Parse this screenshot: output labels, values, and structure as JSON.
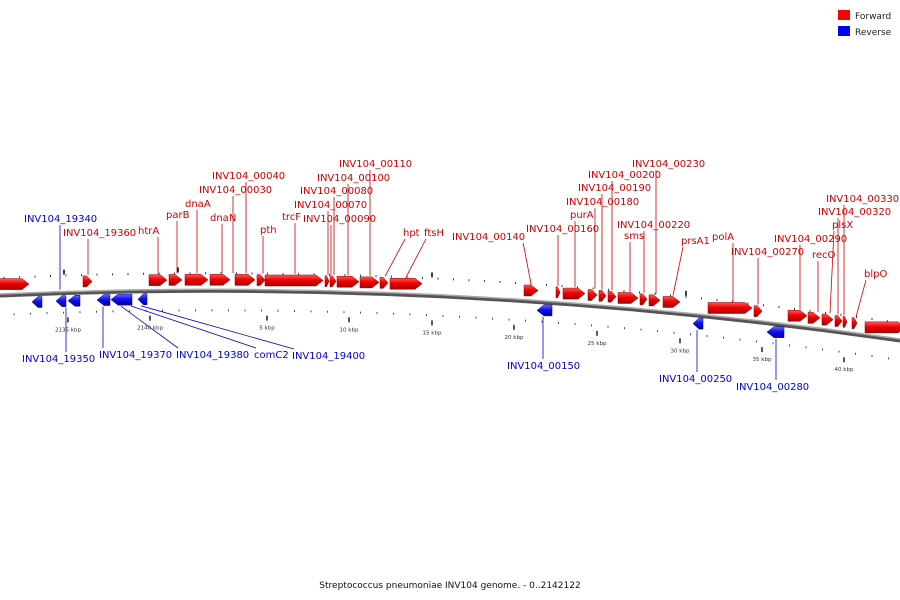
{
  "legend": {
    "forward": {
      "label": "Forward",
      "color": "#ff0000"
    },
    "reverse": {
      "label": "Reverse",
      "color": "#0000ff"
    }
  },
  "caption": "Streptococcus pneumoniae INV104 genome. - 0..2142122",
  "colors": {
    "forward_label": "#cc0000",
    "reverse_label": "#0000cc",
    "backbone": "#777777"
  },
  "scale_labels": [
    "2135 kbp",
    "2140 kbp",
    "5 kbp",
    "10 kbp",
    "15 kbp",
    "20 kbp",
    "25 kbp",
    "30 kbp",
    "35 kbp",
    "40 kbp"
  ],
  "forward_genes": [
    "INV104_19360",
    "htrA",
    "parB",
    "dnaA",
    "dnaN",
    "INV104_00030",
    "INV104_00040",
    "pth",
    "trcF",
    "INV104_00090",
    "INV104_00070",
    "INV104_00080",
    "INV104_00100",
    "INV104_00110",
    "hpt",
    "ftsH",
    "INV104_00140",
    "INV104_00160",
    "purA",
    "INV104_00180",
    "INV104_00190",
    "INV104_00200",
    "sms",
    "INV104_00220",
    "INV104_00230",
    "prsA1",
    "polA",
    "INV104_00270",
    "INV104_00290",
    "recO",
    "plsX",
    "INV104_00320",
    "INV104_00330",
    "blpO"
  ],
  "reverse_genes": [
    "INV104_19340",
    "INV104_19350",
    "INV104_19370",
    "INV104_19380",
    "comC2",
    "INV104_19400",
    "INV104_00150",
    "INV104_00250",
    "INV104_00280"
  ]
}
